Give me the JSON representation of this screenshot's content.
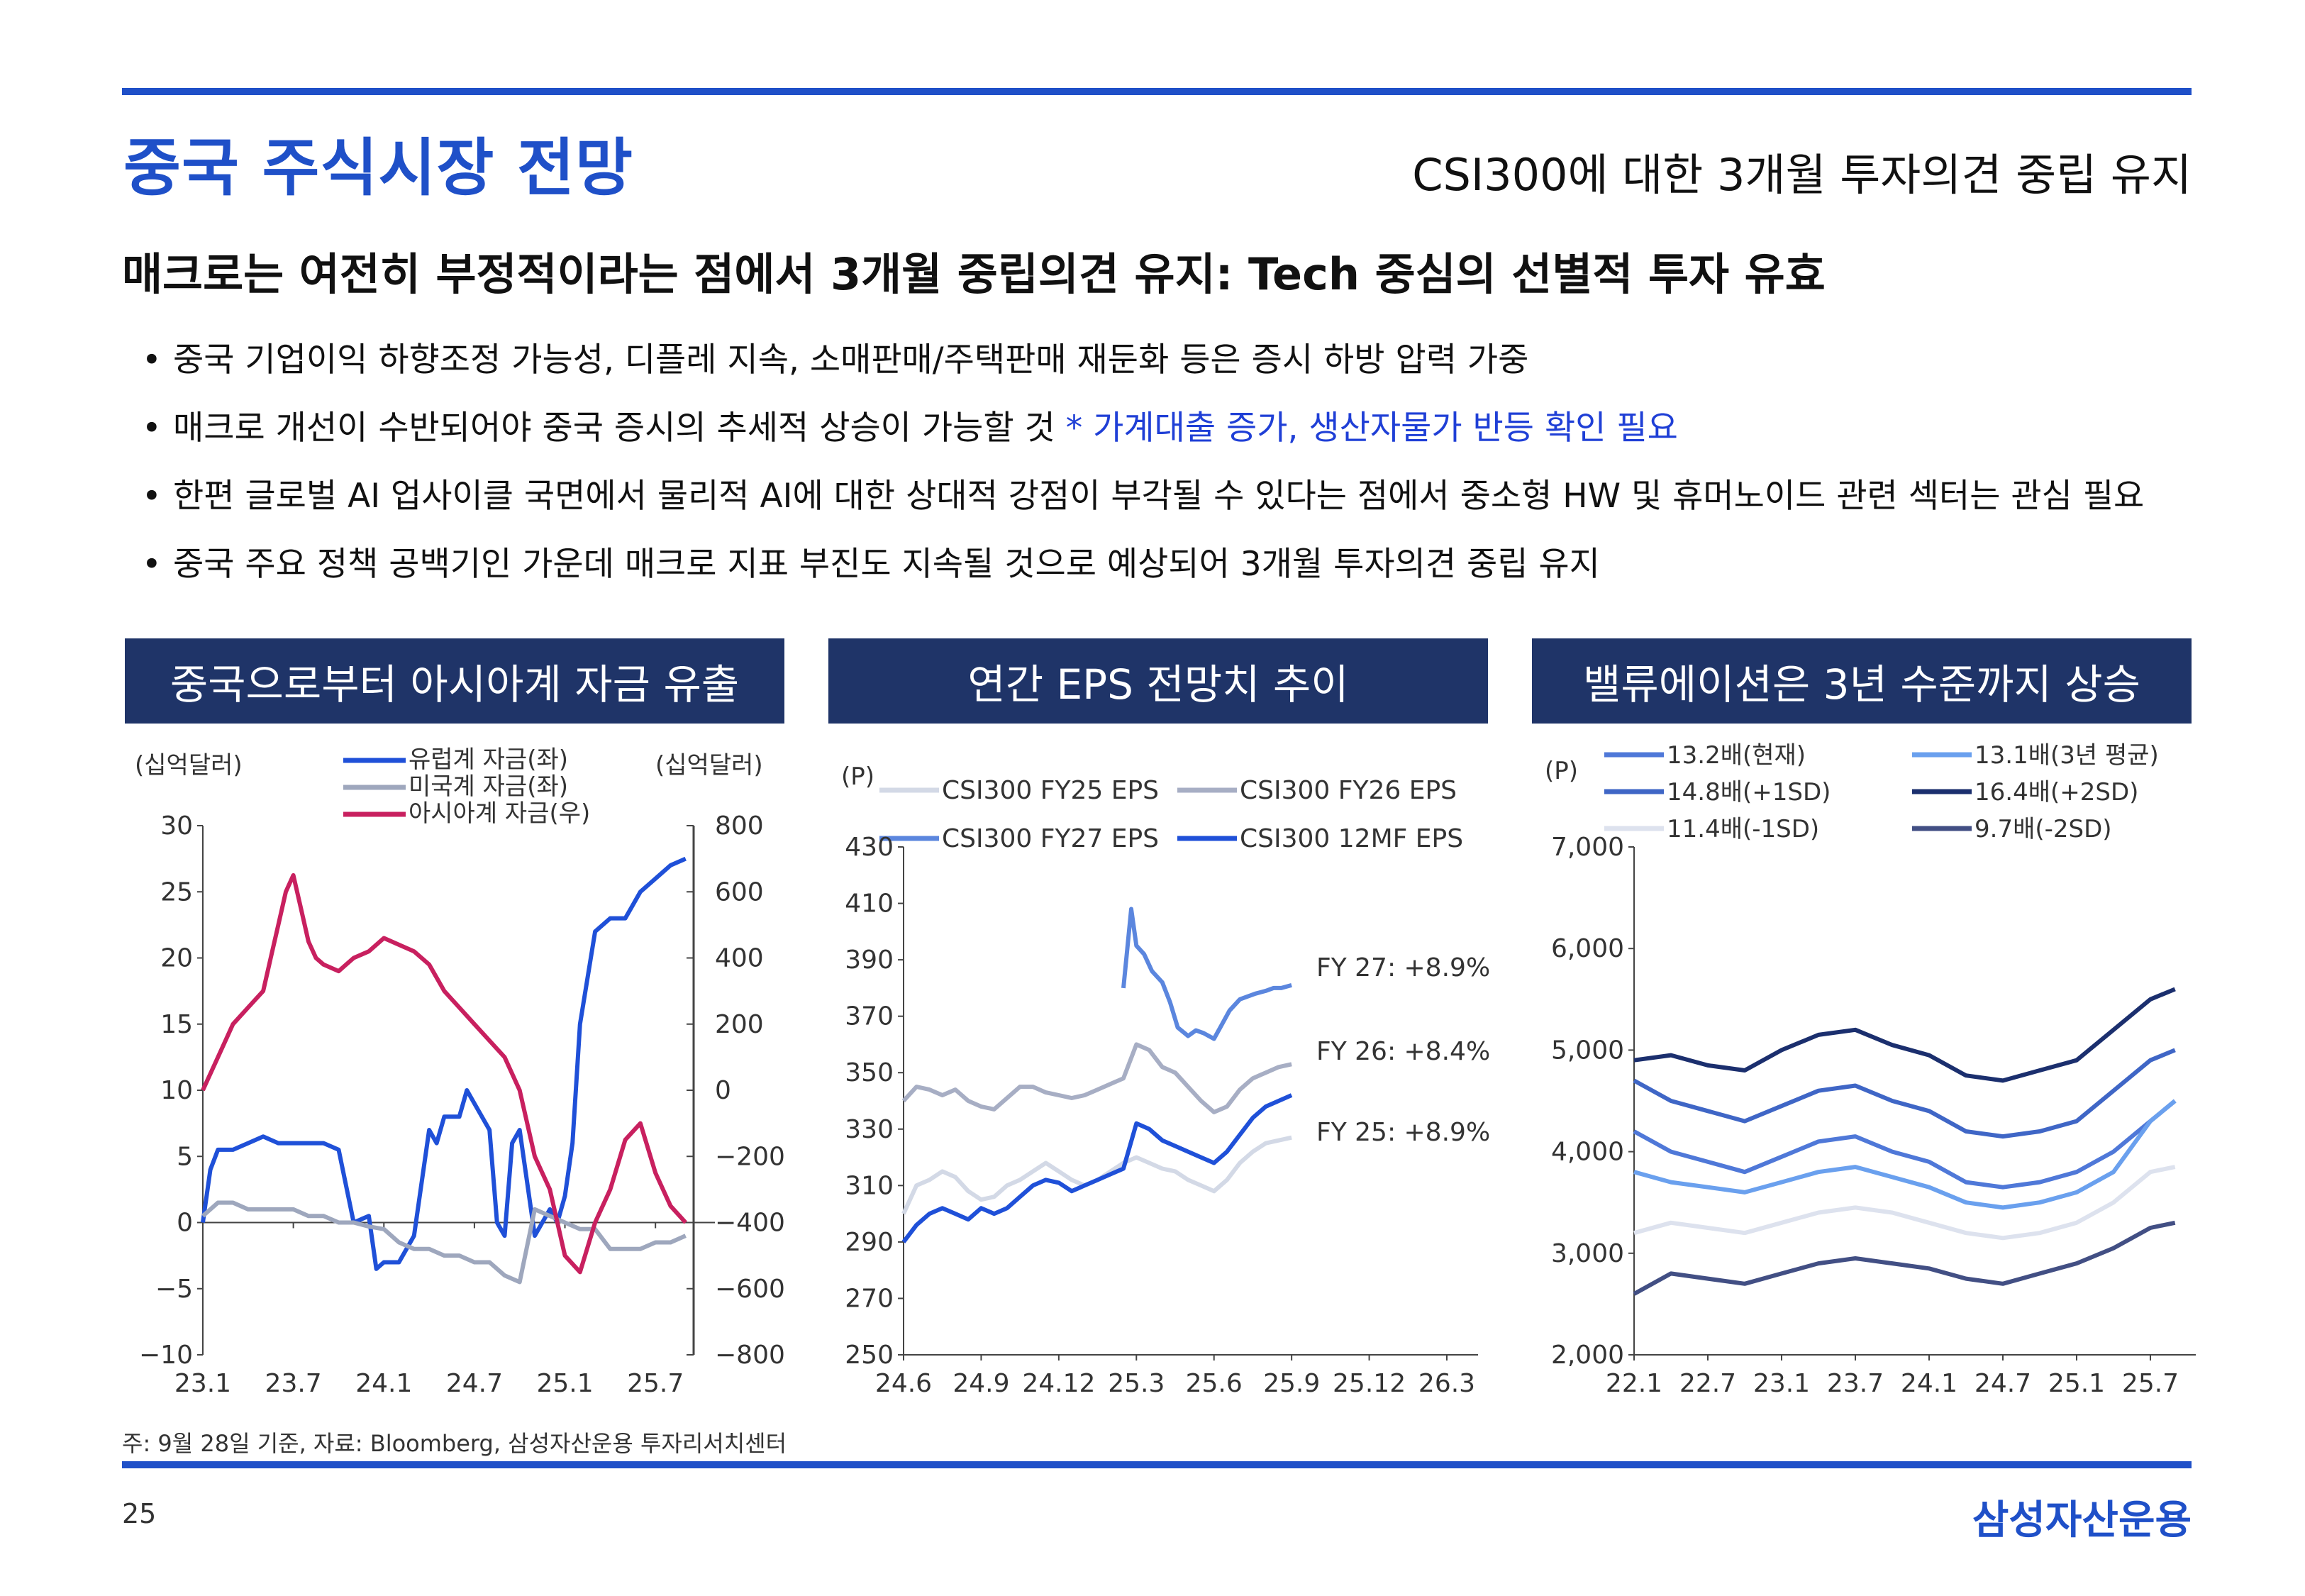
{
  "header": {
    "title": "중국 주식시장 전망",
    "subtitle": "CSI300에 대한 3개월 투자의견 중립 유지"
  },
  "headline": "매크로는 여전히 부정적이라는 점에서 3개월 중립의견 유지: Tech 중심의 선별적 투자 유효",
  "bullets": [
    {
      "text": "중국 기업이익 하향조정 가능성, 디플레 지속,  소매판매/주택판매 재둔화 등은 증시 하방 압력 가중",
      "highlight": ""
    },
    {
      "text": "매크로 개선이 수반되어야 중국 증시의 추세적 상승이 가능할 것 ",
      "highlight": "* 가계대출 증가, 생산자물가 반등 확인 필요"
    },
    {
      "text": "한편 글로벌 AI 업사이클 국면에서 물리적 AI에 대한 상대적 강점이 부각될 수 있다는 점에서 중소형 HW 및 휴머노이드 관련 섹터는 관심 필요",
      "highlight": ""
    },
    {
      "text": "중국 주요 정책 공백기인 가운데 매크로 지표 부진도 지속될 것으로 예상되어 3개월 투자의견 중립 유지",
      "highlight": ""
    }
  ],
  "footnote": "주: 9월 28일 기준, 자료: Bloomberg, 삼성자산운용 투자리서치센터",
  "page_number": "25",
  "logo": "삼성자산운용",
  "colors": {
    "brand": "#1f50c8",
    "panel_header": "#1f3468",
    "highlight": "#1f3fd6"
  },
  "chart_data": [
    {
      "type": "line",
      "title": "중국으로부터 아시아계 자금 유출",
      "y_unit_left": "(십억달러)",
      "y_unit_right": "(십억달러)",
      "x_tick_labels": [
        "23.1",
        "23.7",
        "24.1",
        "24.7",
        "25.1",
        "25.7"
      ],
      "x_tick_pos": [
        0,
        6,
        12,
        18,
        24,
        30
      ],
      "xlim": [
        0,
        33
      ],
      "ylim_left": [
        -10,
        30
      ],
      "yticks_left": [
        30,
        25,
        20,
        15,
        10,
        5,
        0,
        -5,
        -10
      ],
      "ylim_right": [
        -800,
        800
      ],
      "yticks_right": [
        800,
        600,
        400,
        200,
        0,
        -200,
        -400,
        -600,
        -800
      ],
      "series": [
        {
          "name": "유럽계 자금(좌)",
          "axis": "left",
          "color": "#1f50d8",
          "x": [
            0,
            0.5,
            1,
            2,
            3,
            4,
            5,
            6,
            7,
            8,
            9,
            10,
            11,
            11.5,
            12,
            13,
            14,
            15,
            15.5,
            16,
            17,
            17.5,
            18,
            19,
            19.5,
            20,
            20.5,
            21,
            22,
            23,
            23.5,
            24,
            24.5,
            25,
            26,
            27,
            28,
            29,
            30,
            31,
            32
          ],
          "y": [
            0,
            4,
            5.5,
            5.5,
            6,
            6.5,
            6,
            6,
            6,
            6,
            5.5,
            0,
            0.5,
            -3.5,
            -3,
            -3,
            -1,
            7,
            6,
            8,
            8,
            10,
            9,
            7,
            0,
            -1,
            6,
            7,
            -1,
            1,
            0,
            2,
            6,
            15,
            22,
            23,
            23,
            25,
            26,
            27,
            27.5
          ]
        },
        {
          "name": "미국계 자금(좌)",
          "axis": "left",
          "color": "#9ea7bd",
          "x": [
            0,
            1,
            2,
            3,
            4,
            5,
            6,
            7,
            8,
            9,
            10,
            11,
            12,
            13,
            14,
            15,
            16,
            17,
            18,
            19,
            20,
            21,
            22,
            23,
            24,
            25,
            26,
            27,
            28,
            29,
            30,
            31,
            32
          ],
          "y": [
            0.5,
            1.5,
            1.5,
            1,
            1,
            1,
            1,
            0.5,
            0.5,
            0,
            0,
            -0.3,
            -0.5,
            -1.5,
            -2,
            -2,
            -2.5,
            -2.5,
            -3,
            -3,
            -4,
            -4.5,
            1,
            0.5,
            0,
            -0.5,
            -0.5,
            -2,
            -2,
            -2,
            -1.5,
            -1.5,
            -1
          ]
        },
        {
          "name": "아시아계 자금(우)",
          "axis": "right",
          "color": "#c8205f",
          "x": [
            0,
            0.5,
            1,
            1.5,
            2,
            3,
            4,
            4.5,
            5,
            5.5,
            6,
            6.5,
            7,
            7.5,
            8,
            9,
            9.5,
            10,
            11,
            12,
            13,
            14,
            15,
            16,
            17,
            18,
            19,
            20,
            21,
            22,
            23,
            24,
            25,
            26,
            27,
            28,
            29,
            30,
            31,
            32
          ],
          "y": [
            0,
            50,
            100,
            150,
            200,
            250,
            300,
            400,
            500,
            600,
            650,
            550,
            450,
            400,
            380,
            360,
            380,
            400,
            420,
            460,
            440,
            420,
            380,
            300,
            250,
            200,
            150,
            100,
            0,
            -200,
            -300,
            -500,
            -550,
            -400,
            -300,
            -150,
            -100,
            -250,
            -350,
            -400
          ]
        }
      ]
    },
    {
      "type": "line",
      "title": "연간 EPS 전망치 추이",
      "y_unit": "(P)",
      "x_tick_labels": [
        "24.6",
        "24.9",
        "24.12",
        "25.3",
        "25.6",
        "25.9",
        "25.12",
        "26.3"
      ],
      "x_tick_pos": [
        0,
        3,
        6,
        9,
        12,
        15,
        18,
        21
      ],
      "xlim": [
        0,
        21
      ],
      "ylim": [
        250,
        430
      ],
      "yticks": [
        430,
        410,
        390,
        370,
        350,
        330,
        310,
        290,
        270,
        250
      ],
      "annotations": [
        "FY 27: +8.9%",
        "FY 26: +8.4%",
        "FY 25: +8.9%"
      ],
      "series": [
        {
          "name": "CSI300 FY25 EPS",
          "color": "#d3d9e6",
          "x": [
            0,
            0.5,
            1,
            1.5,
            2,
            2.5,
            3,
            3.5,
            4,
            4.5,
            5,
            5.5,
            6,
            6.5,
            7,
            7.5,
            8,
            8.5,
            9,
            9.5,
            10,
            10.5,
            11,
            11.5,
            12,
            12.5,
            13,
            13.5,
            14,
            14.5,
            15
          ],
          "y": [
            300,
            310,
            312,
            315,
            313,
            308,
            305,
            306,
            310,
            312,
            315,
            318,
            315,
            312,
            310,
            312,
            315,
            318,
            320,
            318,
            316,
            315,
            312,
            310,
            308,
            312,
            318,
            322,
            325,
            326,
            327
          ]
        },
        {
          "name": "CSI300 FY26 EPS",
          "color": "#a7aec4",
          "x": [
            0,
            0.5,
            1,
            1.5,
            2,
            2.5,
            3,
            3.5,
            4,
            4.5,
            5,
            5.5,
            6,
            6.5,
            7,
            7.5,
            8,
            8.5,
            9,
            9.5,
            10,
            10.5,
            11,
            11.5,
            12,
            12.5,
            13,
            13.5,
            14,
            14.5,
            15
          ],
          "y": [
            340,
            345,
            344,
            342,
            344,
            340,
            338,
            337,
            341,
            345,
            345,
            343,
            342,
            341,
            342,
            344,
            346,
            348,
            360,
            358,
            352,
            350,
            345,
            340,
            336,
            338,
            344,
            348,
            350,
            352,
            353
          ]
        },
        {
          "name": "CSI300 FY27 EPS",
          "color": "#5b86de",
          "x": [
            8.5,
            8.8,
            9,
            9.3,
            9.6,
            10,
            10.3,
            10.6,
            11,
            11.3,
            11.6,
            12,
            12.3,
            12.6,
            13,
            13.3,
            13.6,
            14,
            14.3,
            14.6,
            15
          ],
          "y": [
            380,
            408,
            395,
            392,
            386,
            382,
            375,
            366,
            363,
            365,
            364,
            362,
            367,
            372,
            376,
            377,
            378,
            379,
            380,
            380,
            381
          ]
        },
        {
          "name": "CSI300 12MF EPS",
          "color": "#1f50d8",
          "x": [
            0,
            0.5,
            1,
            1.5,
            2,
            2.5,
            3,
            3.5,
            4,
            4.5,
            5,
            5.5,
            6,
            6.5,
            7,
            7.5,
            8,
            8.5,
            9,
            9.5,
            10,
            10.5,
            11,
            11.5,
            12,
            12.5,
            13,
            13.5,
            14,
            14.5,
            15
          ],
          "y": [
            290,
            296,
            300,
            302,
            300,
            298,
            302,
            300,
            302,
            306,
            310,
            312,
            311,
            308,
            310,
            312,
            314,
            316,
            332,
            330,
            326,
            324,
            322,
            320,
            318,
            322,
            328,
            334,
            338,
            340,
            342
          ]
        }
      ]
    },
    {
      "type": "line",
      "title": "밸류에이션은 3년 수준까지 상승",
      "y_unit": "(P)",
      "x_tick_labels": [
        "22.1",
        "22.7",
        "23.1",
        "23.7",
        "24.1",
        "24.7",
        "25.1",
        "25.7"
      ],
      "x_tick_pos": [
        0,
        6,
        12,
        18,
        24,
        30,
        36,
        42
      ],
      "xlim": [
        0,
        45
      ],
      "ylim": [
        2000,
        7000
      ],
      "yticks": [
        7000,
        6000,
        5000,
        4000,
        3000,
        2000
      ],
      "series": [
        {
          "name": "13.2배(현재)",
          "color": "#4f78d8",
          "x": [
            0,
            3,
            6,
            9,
            12,
            15,
            18,
            21,
            24,
            27,
            30,
            33,
            36,
            39,
            42,
            44
          ],
          "y": [
            4200,
            4000,
            3900,
            3800,
            3950,
            4100,
            4150,
            4000,
            3900,
            3700,
            3650,
            3700,
            3800,
            4000,
            4300,
            4500
          ]
        },
        {
          "name": "13.1배(3년 평균)",
          "color": "#6aa0ee",
          "x": [
            0,
            3,
            6,
            9,
            12,
            15,
            18,
            21,
            24,
            27,
            30,
            33,
            36,
            39,
            42,
            44
          ],
          "y": [
            3800,
            3700,
            3650,
            3600,
            3700,
            3800,
            3850,
            3750,
            3650,
            3500,
            3450,
            3500,
            3600,
            3800,
            4300,
            4500
          ]
        },
        {
          "name": "14.8배(+1SD)",
          "color": "#3f66c6",
          "x": [
            0,
            3,
            6,
            9,
            12,
            15,
            18,
            21,
            24,
            27,
            30,
            33,
            36,
            39,
            42,
            44
          ],
          "y": [
            4700,
            4500,
            4400,
            4300,
            4450,
            4600,
            4650,
            4500,
            4400,
            4200,
            4150,
            4200,
            4300,
            4600,
            4900,
            5000
          ]
        },
        {
          "name": "16.4배(+2SD)",
          "color": "#1b2f6e",
          "x": [
            0,
            3,
            6,
            9,
            12,
            15,
            18,
            21,
            24,
            27,
            30,
            33,
            36,
            39,
            42,
            44
          ],
          "y": [
            4900,
            4950,
            4850,
            4800,
            5000,
            5150,
            5200,
            5050,
            4950,
            4750,
            4700,
            4800,
            4900,
            5200,
            5500,
            5600
          ]
        },
        {
          "name": "11.4배(-1SD)",
          "color": "#dde2ee",
          "x": [
            0,
            3,
            6,
            9,
            12,
            15,
            18,
            21,
            24,
            27,
            30,
            33,
            36,
            39,
            42,
            44
          ],
          "y": [
            3200,
            3300,
            3250,
            3200,
            3300,
            3400,
            3450,
            3400,
            3300,
            3200,
            3150,
            3200,
            3300,
            3500,
            3800,
            3850
          ]
        },
        {
          "name": "9.7배(-2SD)",
          "color": "#424f84",
          "x": [
            0,
            3,
            6,
            9,
            12,
            15,
            18,
            21,
            24,
            27,
            30,
            33,
            36,
            39,
            42,
            44
          ],
          "y": [
            2600,
            2800,
            2750,
            2700,
            2800,
            2900,
            2950,
            2900,
            2850,
            2750,
            2700,
            2800,
            2900,
            3050,
            3250,
            3300
          ]
        }
      ]
    }
  ]
}
